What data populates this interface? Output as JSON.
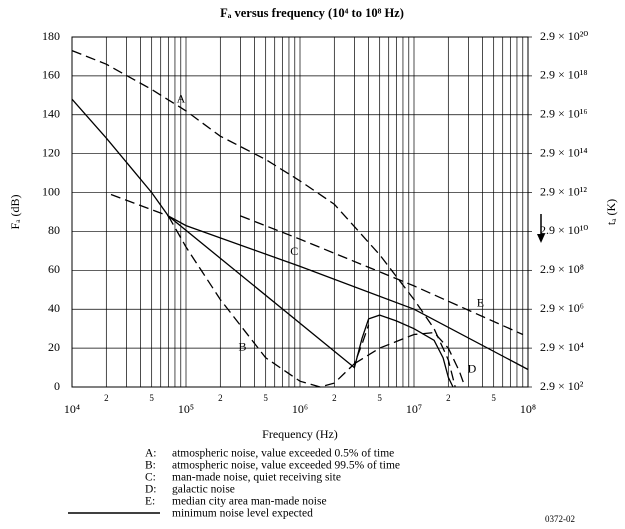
{
  "chart_data": {
    "type": "line",
    "title": "Fₐ versus frequency (10⁴ to 10⁸ Hz)",
    "x_label": "Frequency (Hz)",
    "y_label": "Fₐ (dB)",
    "y2_label": "tₐ (K)",
    "log_x": true,
    "grid": true,
    "xlim": [
      10000,
      100000000
    ],
    "xticks": [
      {
        "value": 10000,
        "label": "10⁴"
      },
      {
        "value": 20000,
        "label": "2"
      },
      {
        "value": 50000,
        "label": "5"
      },
      {
        "value": 100000,
        "label": "10⁵"
      },
      {
        "value": 200000,
        "label": "2"
      },
      {
        "value": 500000,
        "label": "5"
      },
      {
        "value": 1000000,
        "label": "10⁶"
      },
      {
        "value": 2000000,
        "label": "2"
      },
      {
        "value": 5000000,
        "label": "5"
      },
      {
        "value": 10000000,
        "label": "10⁷"
      },
      {
        "value": 20000000,
        "label": "2"
      },
      {
        "value": 50000000,
        "label": "5"
      },
      {
        "value": 100000000,
        "label": "10⁸"
      }
    ],
    "minor_xticks": [
      30000,
      40000,
      60000,
      70000,
      80000,
      90000,
      300000,
      400000,
      600000,
      700000,
      800000,
      900000,
      3000000,
      4000000,
      6000000,
      7000000,
      8000000,
      9000000,
      30000000,
      40000000,
      60000000,
      70000000,
      80000000,
      90000000
    ],
    "ylim": [
      0,
      180
    ],
    "yticks": [
      0,
      20,
      40,
      60,
      80,
      100,
      120,
      140,
      160,
      180
    ],
    "y2lim": [
      0,
      180
    ],
    "y2ticks": [
      {
        "value": 0,
        "label": "2.9 × 10²"
      },
      {
        "value": 20,
        "label": "2.9 × 10⁴"
      },
      {
        "value": 40,
        "label": "2.9 × 10⁶"
      },
      {
        "value": 60,
        "label": "2.9 × 10⁸"
      },
      {
        "value": 80,
        "label": "2.9 × 10¹⁰"
      },
      {
        "value": 100,
        "label": "2.9 × 10¹²"
      },
      {
        "value": 120,
        "label": "2.9 × 10¹⁴"
      },
      {
        "value": 140,
        "label": "2.9 × 10¹⁶"
      },
      {
        "value": 160,
        "label": "2.9 × 10¹⁸"
      },
      {
        "value": 180,
        "label": "2.9 × 10²⁰"
      }
    ],
    "series": [
      {
        "name": "A",
        "color": "#000",
        "dashed": true,
        "x": [
          10000,
          20000,
          50000,
          100000,
          200000,
          500000,
          1000000,
          2000000,
          5000000,
          10000000,
          15000000,
          20000000,
          23000000
        ],
        "values": [
          173,
          166,
          153,
          142,
          129,
          117,
          106,
          94,
          68,
          45,
          30,
          14,
          0
        ]
      },
      {
        "name": "B",
        "color": "#000",
        "dashed": true,
        "x": [
          70000,
          100000,
          200000,
          500000,
          1000000,
          1500000,
          2000000,
          3000000,
          3500000,
          4000000
        ],
        "values": [
          88,
          72,
          45,
          15,
          3,
          0,
          2,
          12,
          22,
          32
        ]
      },
      {
        "name": "C",
        "color": "#000",
        "dashed": false,
        "x": [
          70000,
          100000,
          1000000,
          10000000,
          100000000
        ],
        "values": [
          88,
          83,
          62,
          40,
          9
        ]
      },
      {
        "name": "D",
        "color": "#000",
        "dashed": true,
        "x": [
          3000000,
          5000000,
          10000000,
          15000000,
          20000000,
          25000000,
          28000000
        ],
        "values": [
          12,
          20,
          27,
          28,
          20,
          8,
          0
        ]
      },
      {
        "name": "E",
        "color": "#000",
        "dashed": true,
        "x": [
          22000,
          70000
        ],
        "values": [
          99,
          88
        ]
      },
      {
        "name": "E",
        "color": "#000",
        "dashed": true,
        "x": [
          300000,
          1000000,
          10000000,
          90000000
        ],
        "values": [
          88,
          76,
          52,
          27
        ]
      },
      {
        "name": "minimum noise level expected",
        "color": "#000",
        "dashed": false,
        "x": [
          10000,
          20000,
          50000,
          70000,
          3000000,
          3500000,
          4000000,
          5000000,
          7000000,
          10000000,
          15000000,
          18000000,
          20000000,
          22000000
        ],
        "values": [
          148,
          128,
          100,
          88,
          10,
          25,
          35,
          37,
          34,
          30,
          24,
          15,
          5,
          0
        ]
      }
    ],
    "legend": [
      {
        "key": "A:",
        "text": "atmospheric noise, value exceeded 0.5% of time"
      },
      {
        "key": "B:",
        "text": "atmospheric noise, value exceeded 99.5% of time"
      },
      {
        "key": "C:",
        "text": "man-made noise, quiet receiving site"
      },
      {
        "key": "D:",
        "text": "galactic noise"
      },
      {
        "key": "E:",
        "text": "median city area man-made noise"
      },
      {
        "key": null,
        "text": "minimum noise level expected"
      }
    ],
    "code": "0372-02"
  }
}
